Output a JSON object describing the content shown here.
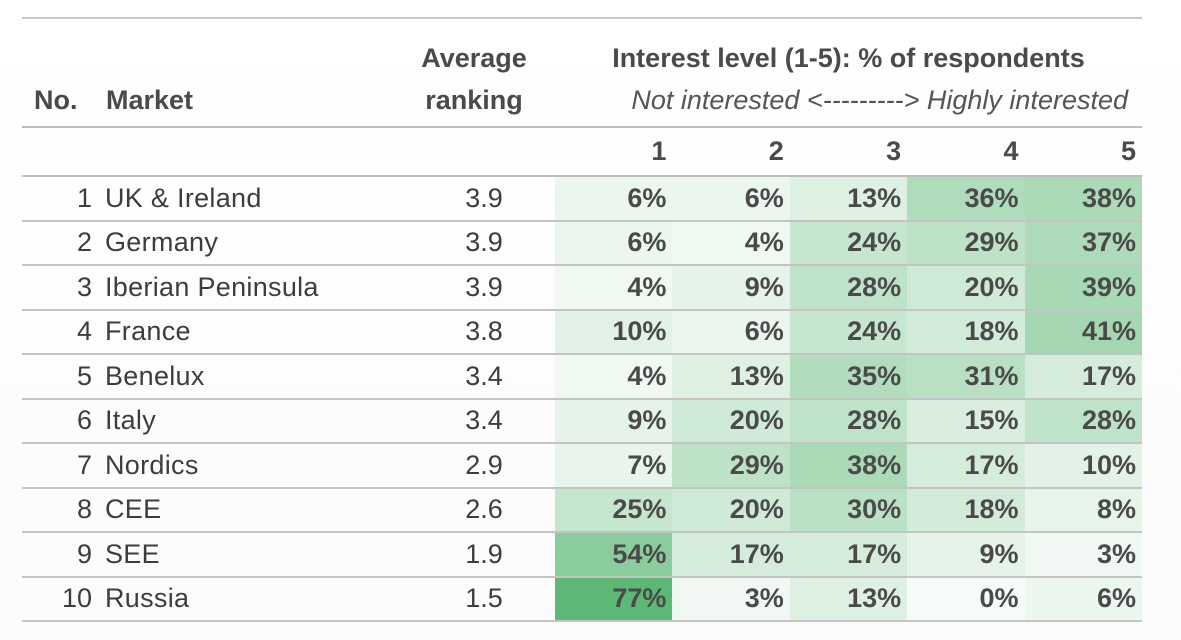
{
  "headers": {
    "no": "No.",
    "market": "Market",
    "avg_line1": "Average",
    "avg_line2": "ranking",
    "interest": "Interest level (1-5): % of respondents",
    "interest_sub": "Not interested <---------> Highly interested",
    "levels": [
      "1",
      "2",
      "3",
      "4",
      "5"
    ]
  },
  "rows": [
    {
      "no": "1",
      "market": "UK & Ireland",
      "avg": "3.9",
      "vals": [
        "6%",
        "6%",
        "13%",
        "36%",
        "38%"
      ]
    },
    {
      "no": "2",
      "market": "Germany",
      "avg": "3.9",
      "vals": [
        "6%",
        "4%",
        "24%",
        "29%",
        "37%"
      ]
    },
    {
      "no": "3",
      "market": "Iberian Peninsula",
      "avg": "3.9",
      "vals": [
        "4%",
        "9%",
        "28%",
        "20%",
        "39%"
      ]
    },
    {
      "no": "4",
      "market": "France",
      "avg": "3.8",
      "vals": [
        "10%",
        "6%",
        "24%",
        "18%",
        "41%"
      ]
    },
    {
      "no": "5",
      "market": "Benelux",
      "avg": "3.4",
      "vals": [
        "4%",
        "13%",
        "35%",
        "31%",
        "17%"
      ]
    },
    {
      "no": "6",
      "market": "Italy",
      "avg": "3.4",
      "vals": [
        "9%",
        "20%",
        "28%",
        "15%",
        "28%"
      ]
    },
    {
      "no": "7",
      "market": "Nordics",
      "avg": "2.9",
      "vals": [
        "7%",
        "29%",
        "38%",
        "17%",
        "10%"
      ]
    },
    {
      "no": "8",
      "market": "CEE",
      "avg": "2.6",
      "vals": [
        "25%",
        "20%",
        "30%",
        "18%",
        "8%"
      ]
    },
    {
      "no": "9",
      "market": "SEE",
      "avg": "1.9",
      "vals": [
        "54%",
        "17%",
        "17%",
        "9%",
        "3%"
      ]
    },
    {
      "no": "10",
      "market": "Russia",
      "avg": "1.5",
      "vals": [
        "77%",
        "3%",
        "13%",
        "0%",
        "6%"
      ]
    }
  ],
  "chart_data": {
    "type": "heatmap",
    "title": "Interest level (1-5): % of respondents",
    "x": [
      "1",
      "2",
      "3",
      "4",
      "5"
    ],
    "y": [
      "UK & Ireland",
      "Germany",
      "Iberian Peninsula",
      "France",
      "Benelux",
      "Italy",
      "Nordics",
      "CEE",
      "SEE",
      "Russia"
    ],
    "average_ranking": [
      3.9,
      3.9,
      3.9,
      3.8,
      3.4,
      3.4,
      2.9,
      2.6,
      1.9,
      1.5
    ],
    "values": [
      [
        6,
        6,
        13,
        36,
        38
      ],
      [
        6,
        4,
        24,
        29,
        37
      ],
      [
        4,
        9,
        28,
        20,
        39
      ],
      [
        10,
        6,
        24,
        18,
        41
      ],
      [
        4,
        13,
        35,
        31,
        17
      ],
      [
        9,
        20,
        28,
        15,
        28
      ],
      [
        7,
        29,
        38,
        17,
        10
      ],
      [
        25,
        20,
        30,
        18,
        8
      ],
      [
        54,
        17,
        17,
        9,
        3
      ],
      [
        77,
        3,
        13,
        0,
        6
      ]
    ],
    "unit": "%",
    "color_low": "#f7fbf8",
    "color_high": "#5cb874"
  }
}
